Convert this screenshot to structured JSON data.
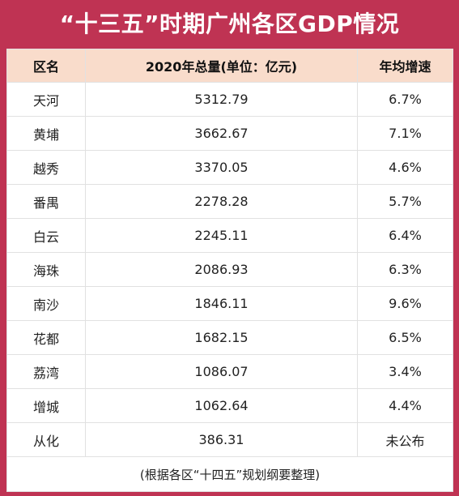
{
  "title": "“十三五”时期广州各区GDP情况",
  "colors": {
    "background": "#bf3353",
    "header_bg": "#f9dccb",
    "table_bg": "#ffffff",
    "border": "#e1e1e1"
  },
  "table": {
    "headers": [
      "区名",
      "2020年总量(单位：亿元)",
      "年均增速"
    ],
    "rows": [
      [
        "天河",
        "5312.79",
        "6.7%"
      ],
      [
        "黄埔",
        "3662.67",
        "7.1%"
      ],
      [
        "越秀",
        "3370.05",
        "4.6%"
      ],
      [
        "番禺",
        "2278.28",
        "5.7%"
      ],
      [
        "白云",
        "2245.11",
        "6.4%"
      ],
      [
        "海珠",
        "2086.93",
        "6.3%"
      ],
      [
        "南沙",
        "1846.11",
        "9.6%"
      ],
      [
        "花都",
        "1682.15",
        "6.5%"
      ],
      [
        "荔湾",
        "1086.07",
        "3.4%"
      ],
      [
        "增城",
        "1062.64",
        "4.4%"
      ],
      [
        "从化",
        "386.31",
        "未公布"
      ]
    ],
    "note": "(根据各区“十四五”规划纲要整理)"
  }
}
